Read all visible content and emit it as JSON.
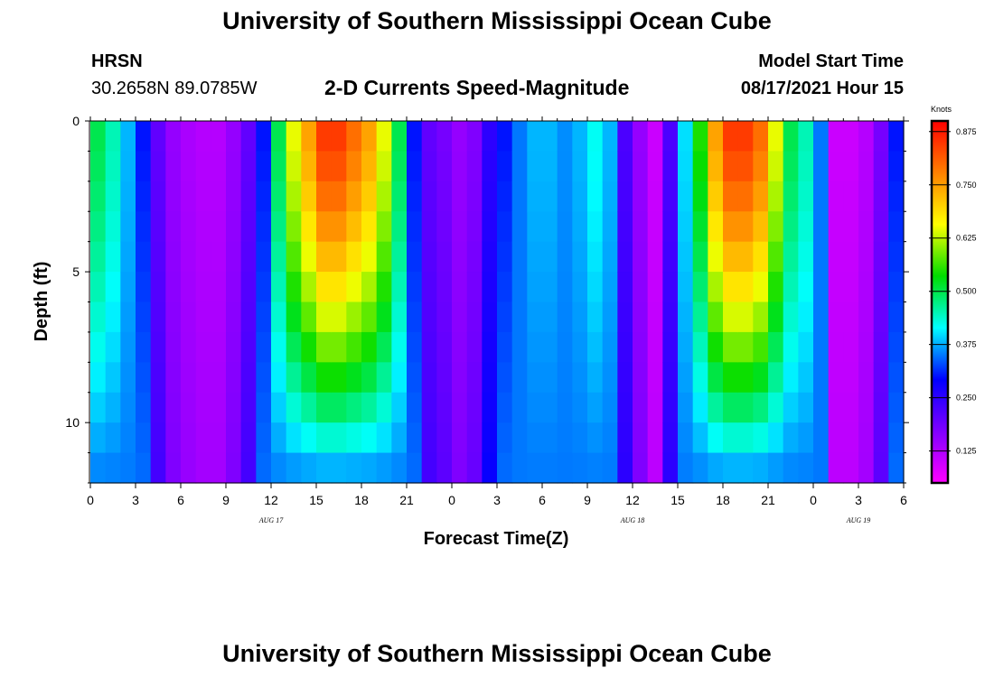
{
  "page": {
    "top_title": "University of Southern Mississippi Ocean Cube",
    "bottom_title": "University of Southern Mississippi Ocean Cube",
    "station_name": "HRSN",
    "station_coords": "30.2658N  89.0785W",
    "subtitle": "2-D Currents Speed-Magnitude",
    "model_start_label": "Model Start Time",
    "model_start_value": "08/17/2021 Hour 15"
  },
  "colors": {
    "colorbar_stops": [
      "#ff00ff",
      "#8000ff",
      "#0000ff",
      "#00ffff",
      "#00dd00",
      "#ffff00",
      "#ff8000",
      "#ff0000"
    ]
  },
  "chart_data": {
    "type": "heatmap",
    "title": "2-D Currents Speed-Magnitude",
    "xlabel": "Forecast Time(Z)",
    "ylabel": "Depth (ft)",
    "xlim": [
      0,
      54
    ],
    "ylim": [
      0,
      12
    ],
    "y_inverted": true,
    "x_ticks": [
      {
        "value": 0,
        "label": "0"
      },
      {
        "value": 3,
        "label": "3"
      },
      {
        "value": 6,
        "label": "6"
      },
      {
        "value": 9,
        "label": "9"
      },
      {
        "value": 12,
        "label": "12"
      },
      {
        "value": 15,
        "label": "15"
      },
      {
        "value": 18,
        "label": "18"
      },
      {
        "value": 21,
        "label": "21"
      },
      {
        "value": 24,
        "label": "0"
      },
      {
        "value": 27,
        "label": "3"
      },
      {
        "value": 30,
        "label": "6"
      },
      {
        "value": 33,
        "label": "9"
      },
      {
        "value": 36,
        "label": "12"
      },
      {
        "value": 39,
        "label": "15"
      },
      {
        "value": 42,
        "label": "18"
      },
      {
        "value": 45,
        "label": "21"
      },
      {
        "value": 48,
        "label": "0"
      },
      {
        "value": 51,
        "label": "3"
      },
      {
        "value": 54,
        "label": "6"
      }
    ],
    "date_labels": [
      {
        "value": 12,
        "label": "AUG 17"
      },
      {
        "value": 36,
        "label": "AUG 18"
      },
      {
        "value": 51,
        "label": "AUG 19"
      }
    ],
    "y_ticks": [
      {
        "value": 0,
        "label": "0"
      },
      {
        "value": 5,
        "label": "5"
      },
      {
        "value": 10,
        "label": "10"
      }
    ],
    "colorbar": {
      "label": "Knots",
      "min": 0.05,
      "max": 0.9,
      "ticks": [
        {
          "value": 0.125,
          "label": "0.125"
        },
        {
          "value": 0.25,
          "label": "0.250"
        },
        {
          "value": 0.375,
          "label": "0.375"
        },
        {
          "value": 0.5,
          "label": "0.500"
        },
        {
          "value": 0.625,
          "label": "0.625"
        },
        {
          "value": 0.75,
          "label": "0.750"
        },
        {
          "value": 0.875,
          "label": "0.875"
        }
      ]
    },
    "n_time_columns": 54,
    "depths": [
      0.5,
      1.5,
      2.5,
      3.5,
      4.5,
      5.5,
      6.5,
      7.5,
      8.5,
      9.5,
      10.5,
      11.5
    ],
    "surface_speed_knots": [
      0.5,
      0.45,
      0.38,
      0.3,
      0.2,
      0.15,
      0.13,
      0.12,
      0.12,
      0.15,
      0.2,
      0.3,
      0.5,
      0.65,
      0.75,
      0.85,
      0.85,
      0.8,
      0.75,
      0.65,
      0.5,
      0.3,
      0.2,
      0.18,
      0.15,
      0.17,
      0.25,
      0.3,
      0.35,
      0.38,
      0.38,
      0.36,
      0.38,
      0.42,
      0.38,
      0.22,
      0.15,
      0.1,
      0.22,
      0.4,
      0.55,
      0.75,
      0.85,
      0.85,
      0.8,
      0.65,
      0.5,
      0.45,
      0.35,
      0.1,
      0.1,
      0.12,
      0.18,
      0.3
    ],
    "note": "Speed at depth d is derived from surface speed: values above 0.3 kn decay toward ~0.35 kn with depth (peaks narrow to a V shape); low-speed troughs stay low."
  }
}
